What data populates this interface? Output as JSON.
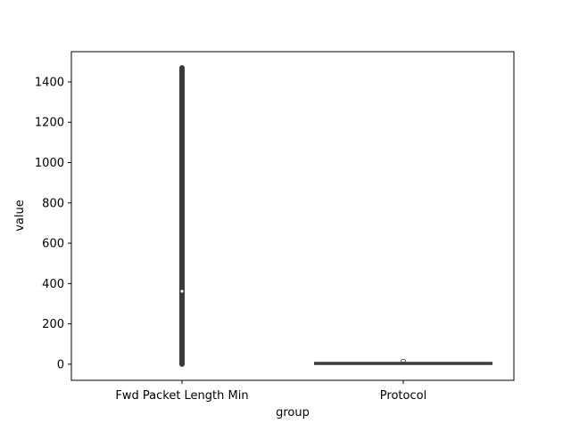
{
  "chart_data": {
    "type": "violin",
    "xlabel": "group",
    "ylabel": "value",
    "ylim": [
      -80,
      1550
    ],
    "yticks": [
      0,
      200,
      400,
      600,
      800,
      1000,
      1200,
      1400
    ],
    "categories": [
      "Fwd Packet Length Min",
      "Protocol"
    ],
    "groups": [
      {
        "name": "Fwd Packet Length Min",
        "min": 0,
        "q1": 325,
        "median": 362,
        "q3": 395,
        "max": 1470,
        "max_half_width": 0.012
      },
      {
        "name": "Protocol",
        "min": 6,
        "q1": 17,
        "median": 17,
        "q3": 17,
        "max": 17,
        "max_half_width": 0.4
      }
    ],
    "grid": false,
    "legend": "none"
  },
  "colors": {
    "violin_fill": "#3a3a3a",
    "box": "#3a3a3a",
    "median": "#ffffff",
    "axis": "#000000"
  }
}
